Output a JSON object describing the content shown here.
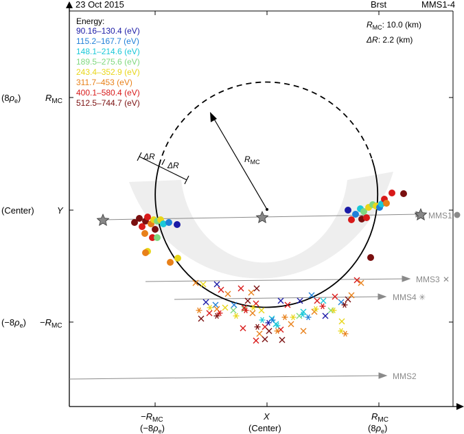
{
  "header": {
    "date": "23 Oct 2015",
    "mode": "Brst",
    "spacecraft": "MMS1-4"
  },
  "params": {
    "rmc_sym": "R",
    "rmc_sub": "MC",
    "rmc_value": ": 10.0 (km)",
    "dr_sym": "ΔR",
    "dr_value": ": 2.2 (km)"
  },
  "legend": {
    "title": "Energy:",
    "entries": [
      {
        "label": "90.16–130.4 (eV)",
        "color": "#1a1aa6"
      },
      {
        "label": "115.2–167.7 (eV)",
        "color": "#1f7fd8"
      },
      {
        "label": "148.1–214.6 (eV)",
        "color": "#19c8d8"
      },
      {
        "label": "189.5–275.6 (eV)",
        "color": "#7fd87f"
      },
      {
        "label": "243.4–352.9 (eV)",
        "color": "#e8d619"
      },
      {
        "label": "311.7–453 (eV)",
        "color": "#e88019"
      },
      {
        "label": "400.1–580.4 (eV)",
        "color": "#d81919"
      },
      {
        "label": "512.5–744.7 (eV)",
        "color": "#7a0f0f"
      }
    ]
  },
  "axes": {
    "y_labels": {
      "rmc_top": {
        "sym": "R",
        "sub": "MC"
      },
      "y": "Y",
      "rmc_bot": {
        "sym": "−R",
        "sub": "MC"
      },
      "left_top": {
        "pre": "(8",
        "rho": "ρ",
        "sub": "e",
        "post": ")"
      },
      "left_center": "(Center)",
      "left_bot": {
        "pre": "(−8",
        "rho": "ρ",
        "sub": "e",
        "post": ")"
      }
    },
    "x_labels": {
      "neg_rmc": {
        "sym": "−R",
        "sub": "MC"
      },
      "neg_rho": {
        "pre": "(−8",
        "rho": "ρ",
        "sub": "e",
        "post": ")"
      },
      "x": "X",
      "x_center": "(Center)",
      "pos_rmc": {
        "sym": "R",
        "sub": "MC"
      },
      "pos_rho": {
        "pre": "(8",
        "rho": "ρ",
        "sub": "e",
        "post": ")"
      }
    }
  },
  "annotations": {
    "radius": {
      "sym": "R",
      "sub": "MC"
    },
    "delta_outer": "ΔR",
    "delta_inner": "ΔR"
  },
  "trajectories": [
    {
      "label": "MMS1",
      "marker": "●",
      "marker_color": "#8a8a8a"
    },
    {
      "label": "MMS3",
      "marker": "✕",
      "marker_color": "#8a8a8a"
    },
    {
      "label": "MMS4",
      "marker": "✳",
      "marker_color": "#8a8a8a"
    },
    {
      "label": "MMS2",
      "marker": "",
      "marker_color": "#8a8a8a"
    }
  ]
}
